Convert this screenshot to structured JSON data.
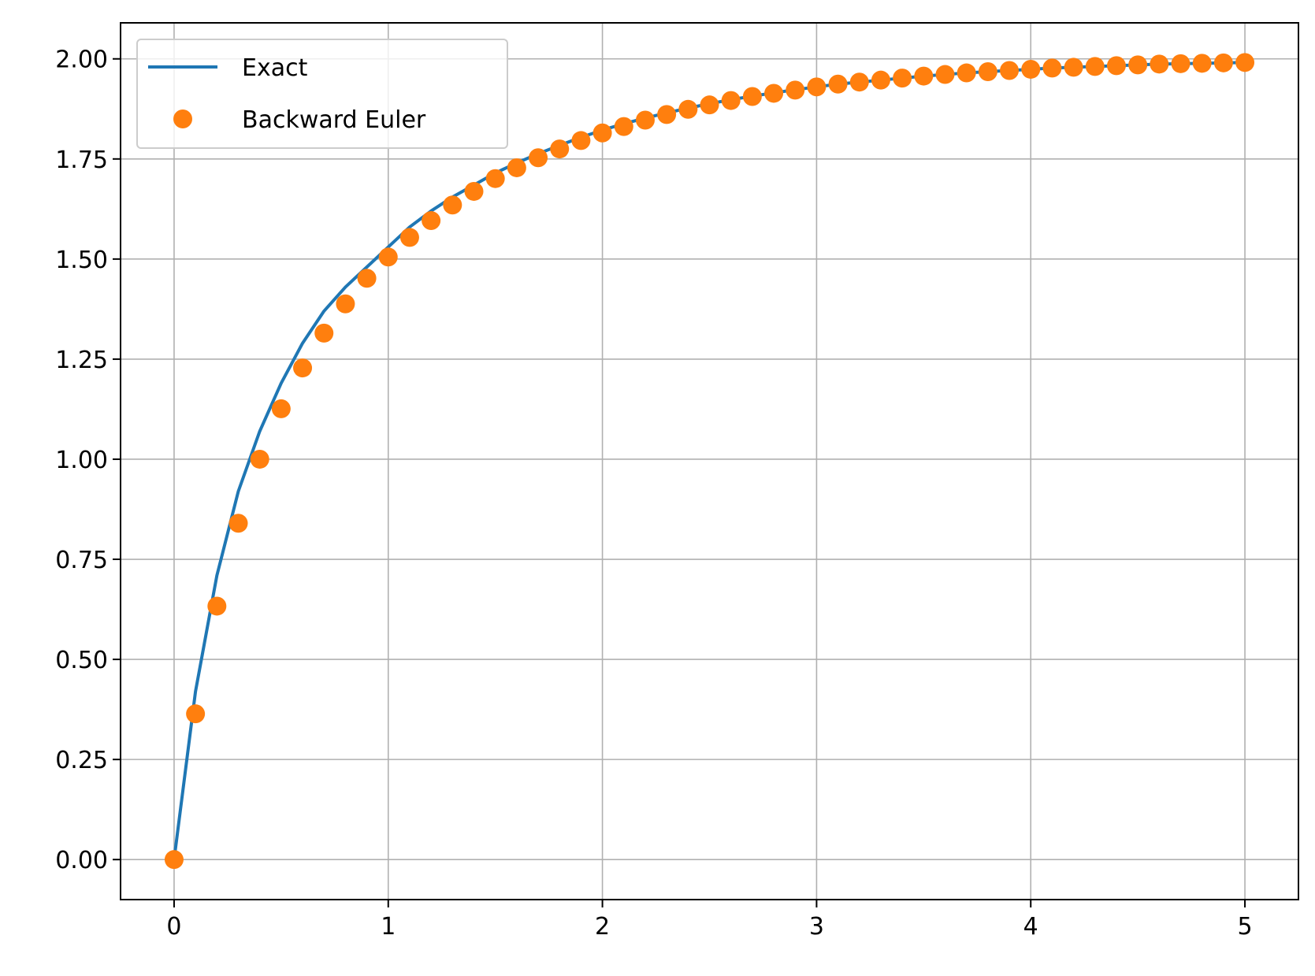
{
  "chart_data": {
    "type": "line",
    "title": "",
    "xlabel": "",
    "ylabel": "",
    "xlim": [
      -0.25,
      5.25
    ],
    "ylim": [
      -0.1,
      2.09
    ],
    "x_ticks": [
      0,
      1,
      2,
      3,
      4,
      5
    ],
    "x_tick_labels": [
      "0",
      "1",
      "2",
      "3",
      "4",
      "5"
    ],
    "y_ticks": [
      0,
      0.25,
      0.5,
      0.75,
      1.0,
      1.25,
      1.5,
      1.75,
      2.0
    ],
    "y_tick_labels": [
      "0.00",
      "0.25",
      "0.50",
      "0.75",
      "1.00",
      "1.25",
      "1.50",
      "1.75",
      "2.00"
    ],
    "grid": true,
    "legend_position": "top-left",
    "series": [
      {
        "name": "Exact",
        "style": "line",
        "color": "#1f77b4",
        "x": [
          0,
          0.1,
          0.2,
          0.3,
          0.4,
          0.5,
          0.6,
          0.7,
          0.8,
          0.9,
          1.0,
          1.1,
          1.2,
          1.3,
          1.4,
          1.5,
          1.6,
          1.7,
          1.8,
          1.9,
          2.0,
          2.1,
          2.2,
          2.3,
          2.4,
          2.5,
          2.6,
          2.7,
          2.8,
          2.9,
          3.0,
          3.1,
          3.2,
          3.3,
          3.4,
          3.5,
          3.6,
          3.7,
          3.8,
          3.9,
          4.0,
          4.1,
          4.2,
          4.3,
          4.4,
          4.5,
          4.6,
          4.7,
          4.8,
          4.9,
          5.0
        ],
        "y": [
          0,
          0.42,
          0.71,
          0.92,
          1.07,
          1.19,
          1.29,
          1.37,
          1.43,
          1.48,
          1.53,
          1.58,
          1.62,
          1.655,
          1.685,
          1.715,
          1.74,
          1.763,
          1.784,
          1.804,
          1.822,
          1.838,
          1.852,
          1.865,
          1.877,
          1.888,
          1.898,
          1.907,
          1.915,
          1.923,
          1.93,
          1.937,
          1.942,
          1.947,
          1.952,
          1.957,
          1.961,
          1.965,
          1.968,
          1.971,
          1.974,
          1.977,
          1.979,
          1.981,
          1.983,
          1.985,
          1.987,
          1.988,
          1.989,
          1.99,
          1.991
        ]
      },
      {
        "name": "Backward Euler",
        "style": "marker",
        "color": "#ff7f0e",
        "x": [
          0,
          0.1,
          0.2,
          0.3,
          0.4,
          0.5,
          0.6,
          0.7,
          0.8,
          0.9,
          1.0,
          1.1,
          1.2,
          1.3,
          1.4,
          1.5,
          1.6,
          1.7,
          1.8,
          1.9,
          2.0,
          2.1,
          2.2,
          2.3,
          2.4,
          2.5,
          2.6,
          2.7,
          2.8,
          2.9,
          3.0,
          3.1,
          3.2,
          3.3,
          3.4,
          3.5,
          3.6,
          3.7,
          3.8,
          3.9,
          4.0,
          4.1,
          4.2,
          4.3,
          4.4,
          4.5,
          4.6,
          4.7,
          4.8,
          4.9,
          5.0
        ],
        "y": [
          0,
          0.364,
          0.633,
          0.84,
          1.0,
          1.126,
          1.228,
          1.315,
          1.388,
          1.452,
          1.505,
          1.554,
          1.596,
          1.635,
          1.669,
          1.701,
          1.728,
          1.753,
          1.775,
          1.796,
          1.815,
          1.831,
          1.847,
          1.861,
          1.874,
          1.885,
          1.896,
          1.906,
          1.914,
          1.922,
          1.93,
          1.937,
          1.942,
          1.947,
          1.952,
          1.957,
          1.961,
          1.965,
          1.968,
          1.971,
          1.974,
          1.977,
          1.979,
          1.981,
          1.983,
          1.985,
          1.987,
          1.988,
          1.989,
          1.99,
          1.991
        ]
      }
    ]
  }
}
